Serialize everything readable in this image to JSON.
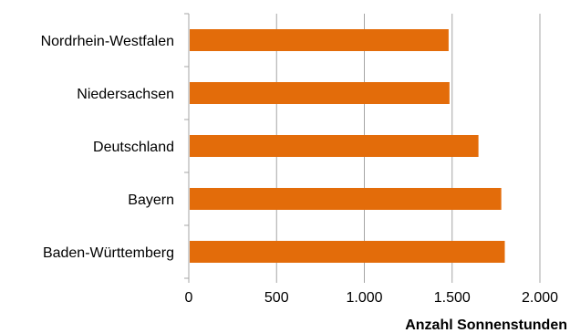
{
  "chart_data": {
    "type": "bar",
    "orientation": "horizontal",
    "categories": [
      "Nordrhein-Westfalen",
      "Niedersachsen",
      "Deutschland",
      "Bayern",
      "Baden-Württemberg"
    ],
    "values": [
      1480,
      1485,
      1650,
      1780,
      1800
    ],
    "xlabel": "Anzahl Sonnenstunden",
    "xlim": [
      0,
      2000
    ],
    "ticks": [
      0,
      500,
      1000,
      1500,
      2000
    ],
    "tick_labels": [
      "0",
      "500",
      "1.000",
      "1.500",
      "2.000"
    ],
    "grid": "vertical",
    "bar_color": "#E36C0A",
    "grid_color": "#A6A6A6"
  }
}
